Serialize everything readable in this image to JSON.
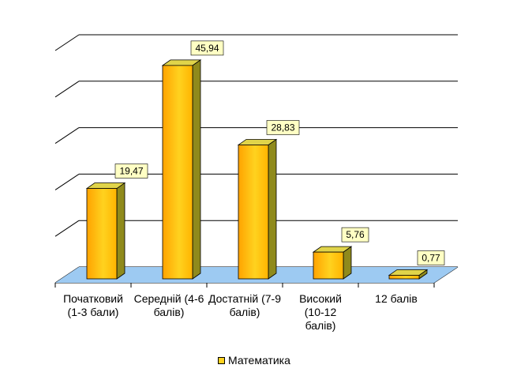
{
  "chart_data": {
    "type": "bar",
    "categories": [
      "Початковий (1-3 бали)",
      "Середній (4-6 балів)",
      "Достатній (7-9 балів)",
      "Високий (10-12 балів)",
      "12 балів"
    ],
    "series": [
      {
        "name": "Математика",
        "values": [
          19.47,
          45.94,
          28.83,
          5.76,
          0.77
        ]
      }
    ],
    "data_labels": [
      "19,47",
      "45,94",
      "28,83",
      "5,76",
      "0,77"
    ],
    "ylim": [
      0,
      50
    ],
    "grid": true,
    "legend_position": "bottom",
    "colors": {
      "bar_face": "#ffd21f",
      "bar_side": "#8f8a1c",
      "bar_top": "#e0d44a",
      "floor": "#9dcaf2",
      "label_box": "#ffffc4"
    }
  },
  "legend": {
    "label": "Математика"
  }
}
